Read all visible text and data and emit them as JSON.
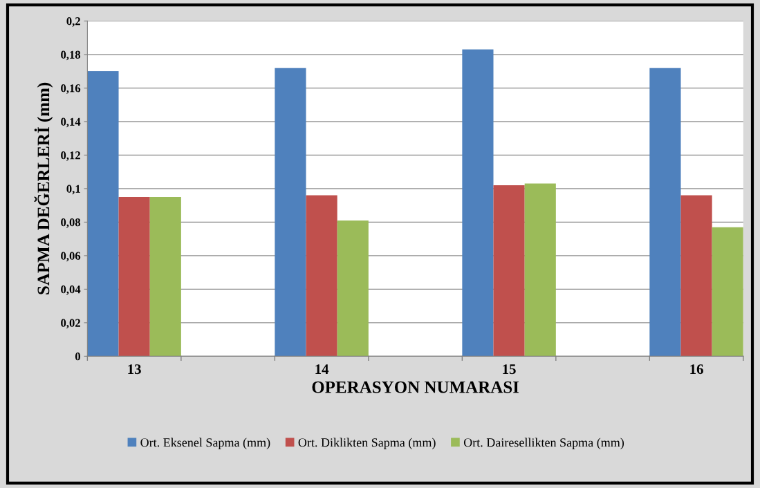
{
  "chart_data": {
    "type": "bar",
    "xlabel": "OPERASYON NUMARASI",
    "ylabel": "SAPMA DEĞERLERİ (mm)",
    "categories": [
      "13",
      "14",
      "15",
      "16"
    ],
    "series": [
      {
        "name": "Ort. Eksenel Sapma (mm)",
        "color": "#4f81bd",
        "values": [
          0.17,
          0.172,
          0.183,
          0.172
        ]
      },
      {
        "name": "Ort. Diklikten Sapma (mm)",
        "color": "#c0504d",
        "values": [
          0.095,
          0.096,
          0.102,
          0.096
        ]
      },
      {
        "name": "Ort. Dairesellikten Sapma (mm)",
        "color": "#9bbb59",
        "values": [
          0.095,
          0.081,
          0.103,
          0.077
        ]
      }
    ],
    "ylim": [
      0,
      0.2
    ],
    "yticks": [
      0,
      {
        "value": 0.02,
        "label": "0,02"
      },
      {
        "value": 0.04,
        "label": "0,04"
      },
      {
        "value": 0.06,
        "label": "0,06"
      },
      {
        "value": 0.08,
        "label": "0,08"
      },
      {
        "value": 0.1,
        "label": "0,1"
      },
      {
        "value": 0.12,
        "label": "0,12"
      },
      {
        "value": 0.14,
        "label": "0,14"
      },
      {
        "value": 0.16,
        "label": "0,16"
      },
      {
        "value": 0.18,
        "label": "0,18"
      },
      {
        "value": 0.2,
        "label": "0,2"
      }
    ],
    "grid": "y",
    "legend": "bottom"
  }
}
